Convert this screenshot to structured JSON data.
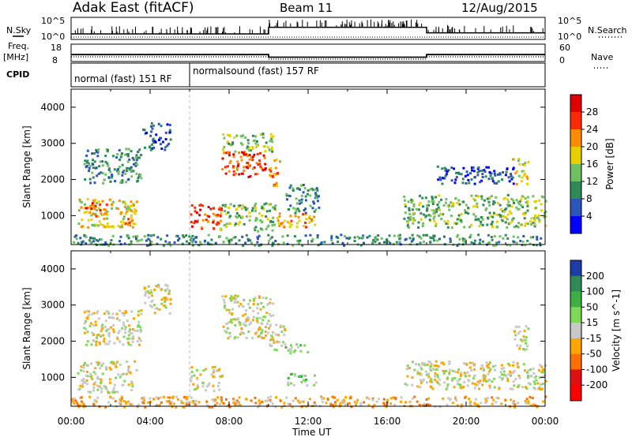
{
  "header": {
    "station": "Adak East (fitACF)",
    "beam": "Beam 11",
    "date": "12/Aug/2015"
  },
  "panel_labels": {
    "nsky": "N.Sky",
    "freq": "Freq.",
    "freq_unit": "[MHz]",
    "cpid": "CPID",
    "nsearch": "N.Search",
    "nave": "Nave"
  },
  "strip_ticks": {
    "noise_top": "10^5",
    "noise_bottom": "10^0",
    "freq_top": "18",
    "freq_bottom": "8",
    "nave_top": "60",
    "nave_bottom": "0"
  },
  "cpid_segments": [
    {
      "label": "normal (fast) 151 RF",
      "start": 0.0,
      "end": 6.0
    },
    {
      "label": "normalsound (fast) 157 RF",
      "start": 6.0,
      "end": 24.0
    }
  ],
  "chart_data": [
    {
      "type": "heatmap",
      "name": "power",
      "ylabel": "Slant Range [km]",
      "yticks": [
        "1000",
        "2000",
        "3000",
        "4000"
      ],
      "ylim": [
        200,
        4500
      ],
      "xlim": [
        0,
        24
      ],
      "colorbar_label": "Power [dB]",
      "colorbar_ticks": [
        "4",
        "8",
        "12",
        "16",
        "20",
        "24",
        "28"
      ],
      "colors": [
        "#0000ff",
        "#2c55b8",
        "#2e8b57",
        "#6fc060",
        "#e8d000",
        "#ff8c00",
        "#ff2a00",
        "#e00000"
      ],
      "regions": [
        {
          "t0": 0.3,
          "t1": 3.3,
          "r0": 700,
          "r1": 1500,
          "level": 4
        },
        {
          "t0": 0.7,
          "t1": 1.8,
          "r0": 1000,
          "r1": 1400,
          "level": 6
        },
        {
          "t0": 2.6,
          "t1": 3.2,
          "r0": 800,
          "r1": 1200,
          "level": 5
        },
        {
          "t0": 0.6,
          "t1": 3.5,
          "r0": 1900,
          "r1": 2900,
          "level": 2
        },
        {
          "t0": 3.6,
          "t1": 5.0,
          "r0": 2800,
          "r1": 3600,
          "level": 1
        },
        {
          "t0": 6.0,
          "t1": 7.6,
          "r0": 650,
          "r1": 1350,
          "level": 6
        },
        {
          "t0": 7.5,
          "t1": 10.3,
          "r0": 600,
          "r1": 1400,
          "level": 3
        },
        {
          "t0": 7.6,
          "t1": 9.8,
          "r0": 2100,
          "r1": 2800,
          "level": 6
        },
        {
          "t0": 7.6,
          "t1": 10.2,
          "r0": 2800,
          "r1": 3300,
          "level": 3
        },
        {
          "t0": 10.0,
          "t1": 10.6,
          "r0": 1800,
          "r1": 2600,
          "level": 5
        },
        {
          "t0": 10.4,
          "t1": 12.3,
          "r0": 700,
          "r1": 1100,
          "level": 5
        },
        {
          "t0": 10.8,
          "t1": 12.5,
          "r0": 1100,
          "r1": 1900,
          "level": 2
        },
        {
          "t0": 16.8,
          "t1": 24.0,
          "r0": 700,
          "r1": 1600,
          "level": 3
        },
        {
          "t0": 18.5,
          "t1": 22.5,
          "r0": 1900,
          "r1": 2400,
          "level": 1
        },
        {
          "t0": 22.3,
          "t1": 23.1,
          "r0": 1900,
          "r1": 2600,
          "level": 4
        },
        {
          "t0": 0.0,
          "t1": 24.0,
          "r0": 200,
          "r1": 500,
          "level": 2
        }
      ]
    },
    {
      "type": "heatmap",
      "name": "velocity",
      "ylabel": "Slant Range [km]",
      "yticks": [
        "1000",
        "2000",
        "3000",
        "4000"
      ],
      "ylim": [
        200,
        4500
      ],
      "xlim": [
        0,
        24
      ],
      "xticks": [
        "00:00",
        "04:00",
        "08:00",
        "12:00",
        "16:00",
        "20:00",
        "00:00"
      ],
      "xlabel": "Time UT",
      "colorbar_label": "Velocity [m s^-1]",
      "colorbar_ticks": [
        "200",
        "100",
        "50",
        "15",
        "-15",
        "-50",
        "-100",
        "-200"
      ],
      "colors": [
        "#1e3ca8",
        "#2e8b57",
        "#3cb043",
        "#7ed957",
        "#c8c8c8",
        "#ffa500",
        "#ff7000",
        "#e01010",
        "#ff0000"
      ],
      "regions": [
        {
          "t0": 0.3,
          "t1": 3.3,
          "r0": 600,
          "r1": 1500,
          "level": 4
        },
        {
          "t0": 0.6,
          "t1": 3.5,
          "r0": 1900,
          "r1": 2900,
          "level": 4
        },
        {
          "t0": 3.6,
          "t1": 5.0,
          "r0": 2800,
          "r1": 3600,
          "level": 4
        },
        {
          "t0": 6.0,
          "t1": 7.6,
          "r0": 650,
          "r1": 1350,
          "level": 4
        },
        {
          "t0": 7.6,
          "t1": 10.2,
          "r0": 2100,
          "r1": 3300,
          "level": 4
        },
        {
          "t0": 10.0,
          "t1": 10.8,
          "r0": 1700,
          "r1": 2500,
          "level": 4
        },
        {
          "t0": 10.8,
          "t1": 12.0,
          "r0": 1700,
          "r1": 1950,
          "level": 3
        },
        {
          "t0": 10.9,
          "t1": 12.4,
          "r0": 800,
          "r1": 1150,
          "level": 3
        },
        {
          "t0": 16.8,
          "t1": 24.0,
          "r0": 700,
          "r1": 1500,
          "level": 4
        },
        {
          "t0": 22.3,
          "t1": 23.1,
          "r0": 1800,
          "r1": 2500,
          "level": 4
        },
        {
          "t0": 0.0,
          "t1": 24.0,
          "r0": 200,
          "r1": 500,
          "level": 5
        }
      ]
    }
  ],
  "noise_series": {
    "sky_levels": [
      {
        "start": 0.0,
        "end": 10.0,
        "value": 0.25
      },
      {
        "start": 10.0,
        "end": 18.0,
        "value": 0.55
      },
      {
        "start": 18.0,
        "end": 24.0,
        "value": 0.3
      }
    ],
    "freq_levels": [
      {
        "start": 0.0,
        "end": 10.0,
        "value": 12.0
      },
      {
        "start": 10.0,
        "end": 18.0,
        "value": 10.5
      },
      {
        "start": 18.0,
        "end": 24.0,
        "value": 12.0
      }
    ]
  }
}
